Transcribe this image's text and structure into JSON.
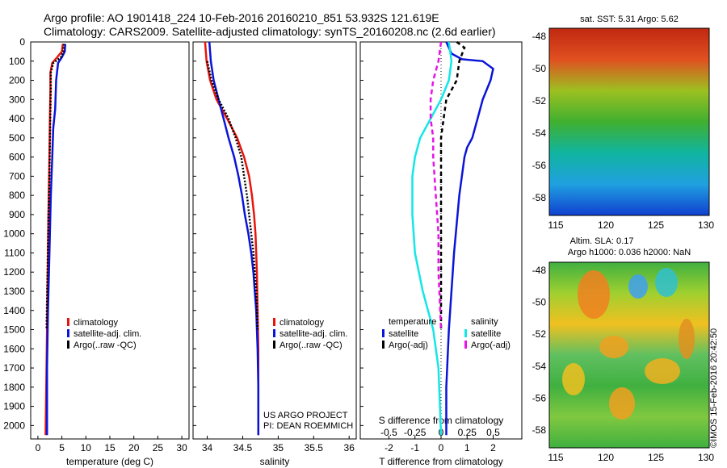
{
  "header": {
    "line1": "Argo profile: AO 1901418_224 10-Feb-2016 20160210_851 53.932S 121.619E",
    "line2": "Climatology: CARS2009. Satellite-adjusted climatology: synTS_20160208.nc (2.6d earlier)"
  },
  "colors": {
    "climatology": "#e8140c",
    "satellite": "#0a14d8",
    "argo": "#000000",
    "cyan": "#14e6e6",
    "magenta": "#e614e6"
  },
  "chart_data": [
    {
      "type": "line",
      "id": "temperature",
      "xlabel": "temperature (deg C)",
      "xticks": [
        "0",
        "5",
        "10",
        "15",
        "20",
        "25",
        "30"
      ],
      "xlim": [
        -1.5,
        31.5
      ],
      "ylim": [
        2070,
        0
      ],
      "yticks": [
        "0",
        "100",
        "200",
        "300",
        "400",
        "500",
        "600",
        "700",
        "800",
        "900",
        "1000",
        "1100",
        "1200",
        "1300",
        "1400",
        "1500",
        "1600",
        "1700",
        "1800",
        "1900",
        "2000"
      ],
      "legend": [
        "climatology",
        "satellite-adj. clim.",
        "Argo(..raw -QC)"
      ],
      "series": [
        {
          "name": "climatology",
          "color": "#e8140c",
          "dash": "",
          "points": [
            [
              5.2,
              10
            ],
            [
              5.0,
              50
            ],
            [
              4.0,
              80
            ],
            [
              3.0,
              110
            ],
            [
              2.6,
              160
            ],
            [
              2.6,
              250
            ],
            [
              2.5,
              400
            ],
            [
              2.4,
              600
            ],
            [
              2.2,
              900
            ],
            [
              2.0,
              1300
            ],
            [
              1.8,
              1700
            ],
            [
              1.6,
              2050
            ]
          ]
        },
        {
          "name": "satellite-adj. clim.",
          "color": "#0a14d8",
          "dash": "",
          "points": [
            [
              5.7,
              10
            ],
            [
              5.6,
              50
            ],
            [
              5.0,
              80
            ],
            [
              4.2,
              110
            ],
            [
              3.8,
              200
            ],
            [
              3.6,
              350
            ],
            [
              3.2,
              450
            ],
            [
              3.0,
              600
            ],
            [
              2.7,
              800
            ],
            [
              2.4,
              1100
            ],
            [
              2.1,
              1400
            ],
            [
              1.9,
              1700
            ],
            [
              1.9,
              2050
            ]
          ]
        },
        {
          "name": "Argo(..raw -QC)",
          "color": "#000000",
          "dash": "2,2",
          "points": [
            [
              5.4,
              10
            ],
            [
              5.3,
              50
            ],
            [
              4.8,
              80
            ],
            [
              3.2,
              110
            ],
            [
              2.7,
              160
            ],
            [
              2.7,
              250
            ],
            [
              2.6,
              350
            ],
            [
              2.5,
              500
            ],
            [
              2.4,
              700
            ],
            [
              2.2,
              900
            ],
            [
              2.0,
              1200
            ],
            [
              1.8,
              1500
            ]
          ]
        }
      ]
    },
    {
      "type": "line",
      "id": "salinity",
      "xlabel": "salinity",
      "xticks": [
        "34",
        "34.5",
        "35",
        "35.5",
        "36"
      ],
      "xlim": [
        33.8,
        36.1
      ],
      "ylim": [
        2070,
        0
      ],
      "legend": [
        "climatology",
        "satellite-adj. clim.",
        "Argo(..raw -QC)"
      ],
      "annotation": [
        "US ARGO PROJECT",
        "PI: DEAN ROEMMICH"
      ],
      "series": [
        {
          "name": "climatology",
          "color": "#e8140c",
          "dash": "",
          "points": [
            [
              33.97,
              0
            ],
            [
              33.99,
              100
            ],
            [
              34.04,
              200
            ],
            [
              34.13,
              300
            ],
            [
              34.28,
              400
            ],
            [
              34.42,
              500
            ],
            [
              34.52,
              600
            ],
            [
              34.59,
              700
            ],
            [
              34.63,
              800
            ],
            [
              34.66,
              900
            ],
            [
              34.68,
              1000
            ],
            [
              34.69,
              1100
            ],
            [
              34.7,
              1200
            ],
            [
              34.71,
              1400
            ],
            [
              34.72,
              1600
            ],
            [
              34.72,
              1800
            ],
            [
              34.72,
              2050
            ]
          ]
        },
        {
          "name": "satellite-adj. clim.",
          "color": "#0a14d8",
          "dash": "",
          "points": [
            [
              34.03,
              0
            ],
            [
              34.05,
              100
            ],
            [
              34.09,
              200
            ],
            [
              34.16,
              300
            ],
            [
              34.23,
              400
            ],
            [
              34.3,
              500
            ],
            [
              34.38,
              600
            ],
            [
              34.44,
              700
            ],
            [
              34.49,
              800
            ],
            [
              34.53,
              900
            ],
            [
              34.58,
              1000
            ],
            [
              34.62,
              1100
            ],
            [
              34.65,
              1200
            ],
            [
              34.67,
              1300
            ],
            [
              34.69,
              1400
            ],
            [
              34.71,
              1600
            ],
            [
              34.72,
              1800
            ],
            [
              34.72,
              2050
            ]
          ]
        },
        {
          "name": "Argo(..raw -QC)",
          "color": "#000000",
          "dash": "2,2",
          "points": [
            [
              34.0,
              100
            ],
            [
              34.06,
              200
            ],
            [
              34.16,
              300
            ],
            [
              34.3,
              400
            ],
            [
              34.4,
              500
            ],
            [
              34.48,
              600
            ],
            [
              34.52,
              700
            ],
            [
              34.56,
              800
            ],
            [
              34.59,
              900
            ],
            [
              34.62,
              1000
            ],
            [
              34.65,
              1100
            ],
            [
              34.67,
              1200
            ],
            [
              34.69,
              1300
            ],
            [
              34.7,
              1400
            ],
            [
              34.71,
              1500
            ]
          ]
        }
      ]
    },
    {
      "type": "line",
      "id": "difference",
      "xlabel": "T difference from climatology",
      "xlabel2": "S difference from climatology",
      "xticks": [
        "-2",
        "-1",
        "0",
        "1",
        "2"
      ],
      "xticks_s": [
        "-0.5",
        "-0.25",
        "0",
        "0.25",
        "0.5"
      ],
      "xlim": [
        -3.1,
        3.1
      ],
      "ylim": [
        2070,
        0
      ],
      "legend_headers": [
        "temperature",
        "salinity"
      ],
      "legend_t": [
        "satellite",
        "Argo(-adj)"
      ],
      "legend_s": [
        "satellite",
        "Argo(-adj)"
      ],
      "series": [
        {
          "name": "satellite",
          "group": "temperature",
          "color": "#0a14d8",
          "dash": "",
          "points": [
            [
              0.2,
              0
            ],
            [
              0.4,
              60
            ],
            [
              0.8,
              90
            ],
            [
              1.6,
              100
            ],
            [
              2.0,
              140
            ],
            [
              1.9,
              200
            ],
            [
              1.6,
              300
            ],
            [
              1.4,
              400
            ],
            [
              1.2,
              500
            ],
            [
              1.0,
              550
            ],
            [
              0.9,
              600
            ],
            [
              0.7,
              800
            ],
            [
              0.5,
              1100
            ],
            [
              0.3,
              1500
            ],
            [
              0.2,
              1800
            ],
            [
              0.2,
              2050
            ]
          ]
        },
        {
          "name": "Argo(-adj)",
          "group": "temperature",
          "color": "#000000",
          "dash": "5,4",
          "points": [
            [
              0.6,
              0
            ],
            [
              0.9,
              30
            ],
            [
              0.7,
              100
            ],
            [
              0.6,
              200
            ],
            [
              0.2,
              300
            ],
            [
              0.1,
              400
            ],
            [
              0.0,
              500
            ],
            [
              0.0,
              800
            ],
            [
              0.0,
              1200
            ],
            [
              0.0,
              1500
            ]
          ]
        },
        {
          "name": "satellite",
          "group": "salinity",
          "color": "#14e6e6",
          "dash": "",
          "points": [
            [
              0.3,
              0
            ],
            [
              0.4,
              100
            ],
            [
              0.3,
              200
            ],
            [
              0.0,
              300
            ],
            [
              -0.4,
              400
            ],
            [
              -0.8,
              500
            ],
            [
              -1.0,
              600
            ],
            [
              -1.1,
              700
            ],
            [
              -1.1,
              900
            ],
            [
              -1.0,
              1100
            ],
            [
              -0.7,
              1300
            ],
            [
              -0.3,
              1500
            ],
            [
              -0.1,
              1700
            ],
            [
              0.0,
              2050
            ]
          ]
        },
        {
          "name": "Argo(-adj)",
          "group": "salinity",
          "color": "#e614e6",
          "dash": "6,4",
          "points": [
            [
              0.0,
              0
            ],
            [
              -0.1,
              100
            ],
            [
              -0.3,
              200
            ],
            [
              -0.4,
              300
            ],
            [
              -0.4,
              400
            ],
            [
              -0.3,
              500
            ],
            [
              -0.3,
              600
            ],
            [
              -0.2,
              800
            ],
            [
              -0.1,
              1000
            ],
            [
              -0.1,
              1200
            ],
            [
              0.0,
              1500
            ]
          ]
        }
      ]
    }
  ],
  "maps": [
    {
      "id": "sst",
      "title": "sat. SST: 5.31  Argo: 5.62",
      "xticks": [
        "115",
        "120",
        "125",
        "130"
      ],
      "yticks": [
        "-48",
        "-50",
        "-52",
        "-54",
        "-56",
        "-58"
      ]
    },
    {
      "id": "sla",
      "title_l1": "Altim. SLA: 0.17",
      "title_l2": "Argo h1000: 0.036 h2000: NaN",
      "xticks": [
        "115",
        "120",
        "125",
        "130"
      ],
      "yticks": [
        "-48",
        "-50",
        "-52",
        "-54",
        "-56",
        "-58"
      ],
      "stamp": "©IMOS 15-Feb-2016 20:42:50"
    }
  ]
}
